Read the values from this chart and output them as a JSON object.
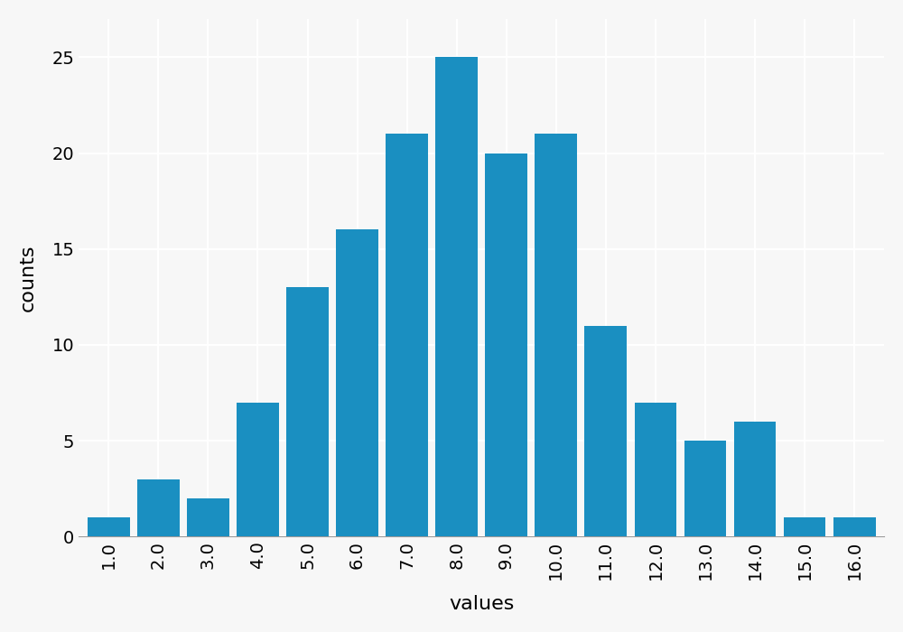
{
  "categories": [
    1.0,
    2.0,
    3.0,
    4.0,
    5.0,
    6.0,
    7.0,
    8.0,
    9.0,
    10.0,
    11.0,
    12.0,
    13.0,
    14.0,
    15.0,
    16.0
  ],
  "values": [
    1,
    3,
    2,
    7,
    13,
    16,
    21,
    25,
    20,
    21,
    11,
    7,
    5,
    6,
    1,
    1
  ],
  "bar_color": "#1a8fc1",
  "xlabel": "values",
  "ylabel": "counts",
  "xlabel_fontsize": 16,
  "ylabel_fontsize": 16,
  "tick_fontsize": 14,
  "background_color": "#f7f7f7",
  "grid_color": "#ffffff",
  "bar_width": 0.85,
  "ylim": [
    0,
    27
  ],
  "yticks": [
    0,
    5,
    10,
    15,
    20,
    25
  ],
  "xlim": [
    0.4,
    16.6
  ]
}
